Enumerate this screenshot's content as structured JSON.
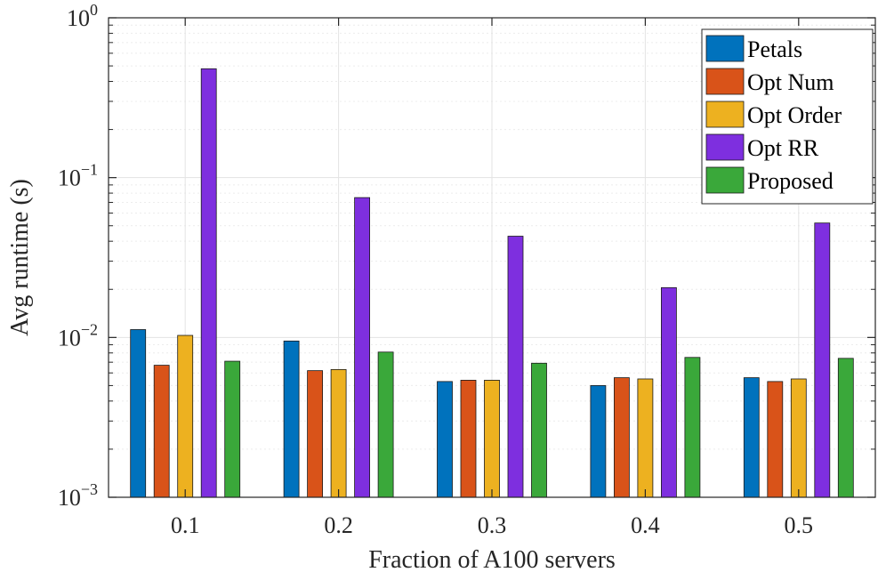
{
  "chart_data": {
    "type": "bar",
    "xlabel": "Fraction of A100 servers",
    "ylabel": "Avg runtime (s)",
    "yscale": "log",
    "ylim": [
      0.001,
      1
    ],
    "grid": "on",
    "legend_position": "top-right",
    "categories": [
      "0.1",
      "0.2",
      "0.3",
      "0.4",
      "0.5"
    ],
    "y_ticks": [
      {
        "value": 0.001,
        "base": "10",
        "exp": "−3"
      },
      {
        "value": 0.01,
        "base": "10",
        "exp": "−2"
      },
      {
        "value": 0.1,
        "base": "10",
        "exp": "−1"
      },
      {
        "value": 1,
        "base": "10",
        "exp": "0"
      }
    ],
    "series": [
      {
        "name": "Petals",
        "color": "#0072bd",
        "values": [
          0.0112,
          0.0095,
          0.0053,
          0.005,
          0.0056
        ]
      },
      {
        "name": "Opt Num",
        "color": "#d95319",
        "values": [
          0.0067,
          0.0062,
          0.0054,
          0.0056,
          0.0053
        ]
      },
      {
        "name": "Opt Order",
        "color": "#edb120",
        "values": [
          0.0103,
          0.0063,
          0.0054,
          0.0055,
          0.0055
        ]
      },
      {
        "name": "Opt RR",
        "color": "#7e2fdf",
        "values": [
          0.48,
          0.075,
          0.043,
          0.0205,
          0.052
        ]
      },
      {
        "name": "Proposed",
        "color": "#3aa83a",
        "values": [
          0.0071,
          0.0081,
          0.0069,
          0.0075,
          0.0074
        ]
      }
    ]
  }
}
